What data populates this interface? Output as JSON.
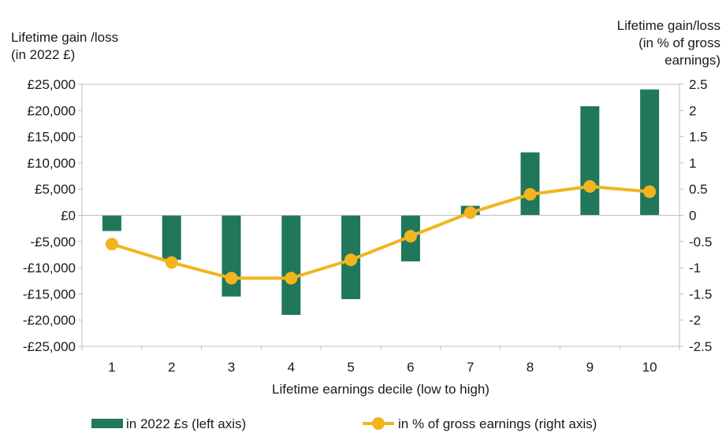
{
  "chart_data": {
    "type": "bar",
    "categories": [
      "1",
      "2",
      "3",
      "4",
      "5",
      "6",
      "7",
      "8",
      "9",
      "10"
    ],
    "xlabel": "Lifetime earnings decile (low to high)",
    "ylabel_left": [
      "Lifetime gain /loss",
      "(in 2022 £)"
    ],
    "ylabel_right": [
      "Lifetime gain/loss",
      "(in % of gross",
      "earnings)"
    ],
    "y_left": {
      "min": -25000,
      "max": 25000,
      "ticks": [
        25000,
        20000,
        15000,
        10000,
        5000,
        0,
        -5000,
        -10000,
        -15000,
        -20000,
        -25000
      ],
      "tick_labels": [
        "£25,000",
        "£20,000",
        "£15,000",
        "£10,000",
        "£5,000",
        "£0",
        "-£5,000",
        "-£10,000",
        "-£15,000",
        "-£20,000",
        "-£25,000"
      ]
    },
    "y_right": {
      "min": -2.5,
      "max": 2.5,
      "ticks": [
        2.5,
        2,
        1.5,
        1,
        0.5,
        0,
        -0.5,
        -1,
        -1.5,
        -2,
        -2.5
      ],
      "tick_labels": [
        "2.5",
        "2",
        "1.5",
        "1",
        "0.5",
        "0",
        "-0.5",
        "-1",
        "-1.5",
        "-2",
        "-2.5"
      ]
    },
    "series": [
      {
        "name": "in 2022 £s (left axis)",
        "type": "bar",
        "axis": "left",
        "color": "#21775a",
        "values": [
          -3000,
          -8500,
          -15500,
          -19000,
          -16000,
          -8800,
          1800,
          12000,
          20800,
          24000
        ]
      },
      {
        "name": "in % of gross earnings (right axis)",
        "type": "line",
        "axis": "right",
        "color": "#f2b51d",
        "values": [
          -0.55,
          -0.9,
          -1.2,
          -1.2,
          -0.85,
          -0.4,
          0.05,
          0.4,
          0.55,
          0.45
        ]
      }
    ],
    "grid": false,
    "legend_position": "bottom"
  }
}
